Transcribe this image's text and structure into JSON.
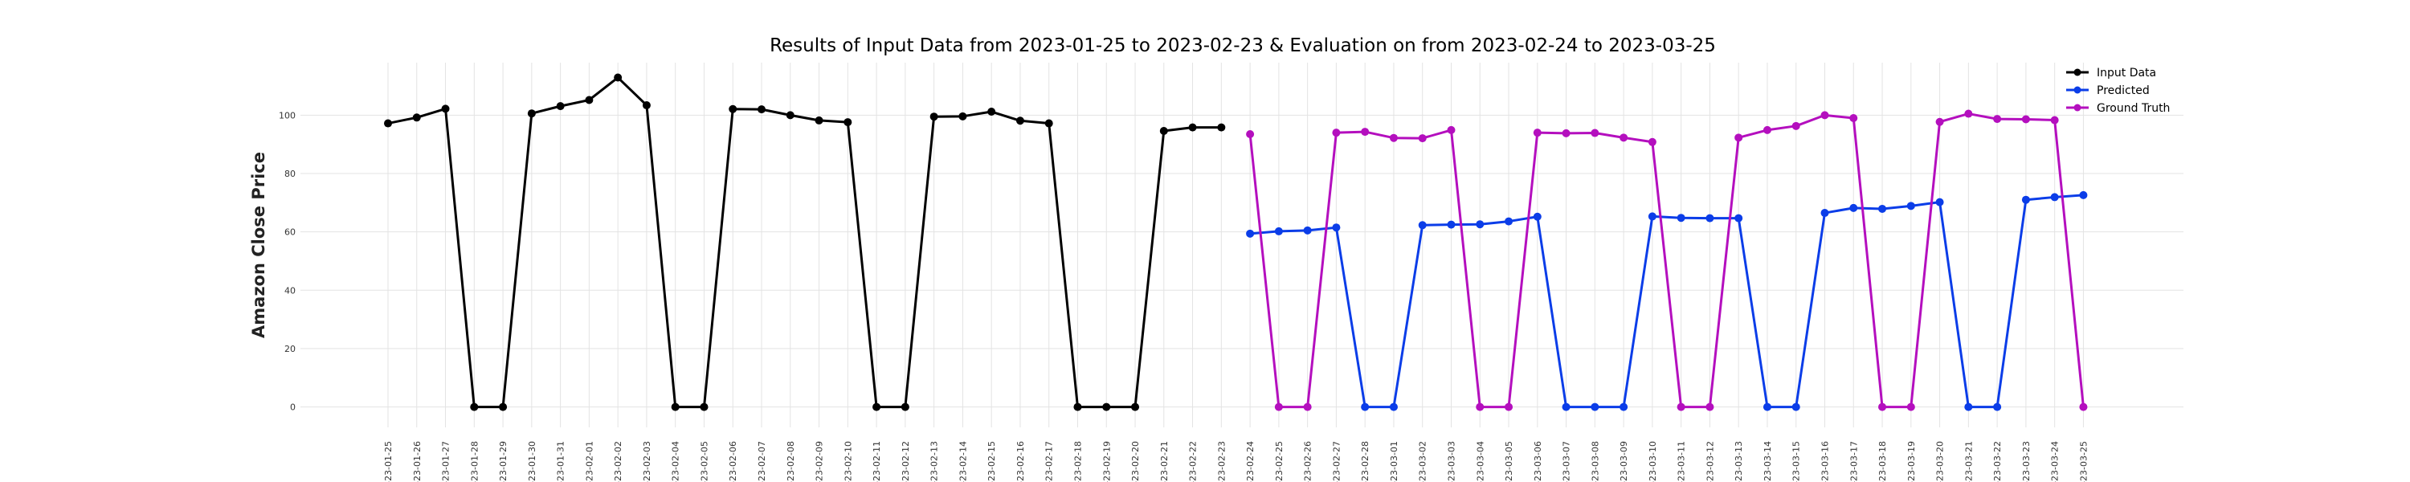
{
  "chart_data": {
    "type": "line",
    "title": "Results of Input Data from 2023-01-25 to 2023-02-23 & Evaluation on from 2023-02-24 to 2023-03-25",
    "xlabel": "",
    "ylabel": "Amazon Close Price",
    "ylim": [
      -7,
      118
    ],
    "yticks": [
      0,
      20,
      40,
      60,
      80,
      100
    ],
    "grid": true,
    "legend_position": "top-right",
    "categories": [
      "2023-01-25",
      "2023-01-26",
      "2023-01-27",
      "2023-01-28",
      "2023-01-29",
      "2023-01-30",
      "2023-01-31",
      "2023-02-01",
      "2023-02-02",
      "2023-02-03",
      "2023-02-04",
      "2023-02-05",
      "2023-02-06",
      "2023-02-07",
      "2023-02-08",
      "2023-02-09",
      "2023-02-10",
      "2023-02-11",
      "2023-02-12",
      "2023-02-13",
      "2023-02-14",
      "2023-02-15",
      "2023-02-16",
      "2023-02-17",
      "2023-02-18",
      "2023-02-19",
      "2023-02-20",
      "2023-02-21",
      "2023-02-22",
      "2023-02-23",
      "2023-02-24",
      "2023-02-25",
      "2023-02-26",
      "2023-02-27",
      "2023-02-28",
      "2023-03-01",
      "2023-03-02",
      "2023-03-03",
      "2023-03-04",
      "2023-03-05",
      "2023-03-06",
      "2023-03-07",
      "2023-03-08",
      "2023-03-09",
      "2023-03-10",
      "2023-03-11",
      "2023-03-12",
      "2023-03-13",
      "2023-03-14",
      "2023-03-15",
      "2023-03-16",
      "2023-03-17",
      "2023-03-18",
      "2023-03-19",
      "2023-03-20",
      "2023-03-21",
      "2023-03-22",
      "2023-03-23",
      "2023-03-24",
      "2023-03-25"
    ],
    "tick_labels": [
      "-23-01-25",
      "-23-01-26",
      "-23-01-27",
      "-23-01-28",
      "-23-01-29",
      "-23-01-30",
      "-23-01-31",
      "-23-02-01",
      "-23-02-02",
      "-23-02-03",
      "-23-02-04",
      "-23-02-05",
      "-23-02-06",
      "-23-02-07",
      "-23-02-08",
      "-23-02-09",
      "-23-02-10",
      "-23-02-11",
      "-23-02-12",
      "-23-02-13",
      "-23-02-14",
      "-23-02-15",
      "-23-02-16",
      "-23-02-17",
      "-23-02-18",
      "-23-02-19",
      "-23-02-20",
      "-23-02-21",
      "-23-02-22",
      "-23-02-23",
      "-23-02-24",
      "-23-02-25",
      "-23-02-26",
      "-23-02-27",
      "-23-02-28",
      "-23-03-01",
      "-23-03-02",
      "-23-03-03",
      "-23-03-04",
      "-23-03-05",
      "-23-03-06",
      "-23-03-07",
      "-23-03-08",
      "-23-03-09",
      "-23-03-10",
      "-23-03-11",
      "-23-03-12",
      "-23-03-13",
      "-23-03-14",
      "-23-03-15",
      "-23-03-16",
      "-23-03-17",
      "-23-03-18",
      "-23-03-19",
      "-23-03-20",
      "-23-03-21",
      "-23-03-22",
      "-23-03-23",
      "-23-03-24",
      "-23-03-25"
    ],
    "series": [
      {
        "name": "Input Data",
        "color": "#000000",
        "x": [
          "2023-01-25",
          "2023-01-26",
          "2023-01-27",
          "2023-01-28",
          "2023-01-29",
          "2023-01-30",
          "2023-01-31",
          "2023-02-01",
          "2023-02-02",
          "2023-02-03",
          "2023-02-04",
          "2023-02-05",
          "2023-02-06",
          "2023-02-07",
          "2023-02-08",
          "2023-02-09",
          "2023-02-10",
          "2023-02-11",
          "2023-02-12",
          "2023-02-13",
          "2023-02-14",
          "2023-02-15",
          "2023-02-16",
          "2023-02-17",
          "2023-02-18",
          "2023-02-19",
          "2023-02-20",
          "2023-02-21",
          "2023-02-22",
          "2023-02-23"
        ],
        "values": [
          97.2,
          99.2,
          102.2,
          0,
          0,
          100.6,
          103.1,
          105.2,
          112.9,
          103.4,
          0,
          0,
          102.1,
          102.0,
          100.0,
          98.2,
          97.6,
          0,
          0,
          99.5,
          99.6,
          101.2,
          98.1,
          97.2,
          0,
          0,
          0,
          94.6,
          95.8,
          95.8
        ]
      },
      {
        "name": "Predicted",
        "color": "#0b3de8",
        "x": [
          "2023-02-24",
          "2023-02-25",
          "2023-02-26",
          "2023-02-27",
          "2023-02-28",
          "2023-03-01",
          "2023-03-02",
          "2023-03-03",
          "2023-03-04",
          "2023-03-05",
          "2023-03-06",
          "2023-03-07",
          "2023-03-08",
          "2023-03-09",
          "2023-03-10",
          "2023-03-11",
          "2023-03-12",
          "2023-03-13",
          "2023-03-14",
          "2023-03-15",
          "2023-03-16",
          "2023-03-17",
          "2023-03-18",
          "2023-03-19",
          "2023-03-20",
          "2023-03-21",
          "2023-03-22",
          "2023-03-23",
          "2023-03-24",
          "2023-03-25"
        ],
        "values": [
          59.4,
          60.2,
          60.5,
          61.5,
          0,
          0,
          62.3,
          62.5,
          62.6,
          63.6,
          65.2,
          0,
          0,
          0,
          65.3,
          64.8,
          64.7,
          64.7,
          0,
          0,
          66.5,
          68.2,
          67.9,
          68.9,
          70.2,
          0,
          0,
          71.0,
          71.9,
          72.6
        ]
      },
      {
        "name": "Ground Truth",
        "color": "#b40fbe",
        "x": [
          "2023-02-24",
          "2023-02-25",
          "2023-02-26",
          "2023-02-27",
          "2023-02-28",
          "2023-03-01",
          "2023-03-02",
          "2023-03-03",
          "2023-03-04",
          "2023-03-05",
          "2023-03-06",
          "2023-03-07",
          "2023-03-08",
          "2023-03-09",
          "2023-03-10",
          "2023-03-11",
          "2023-03-12",
          "2023-03-13",
          "2023-03-14",
          "2023-03-15",
          "2023-03-16",
          "2023-03-17",
          "2023-03-18",
          "2023-03-19",
          "2023-03-20",
          "2023-03-21",
          "2023-03-22",
          "2023-03-23",
          "2023-03-24",
          "2023-03-25"
        ],
        "values": [
          93.5,
          0,
          0,
          94.0,
          94.3,
          92.2,
          92.1,
          94.9,
          0,
          0,
          94.0,
          93.8,
          93.9,
          92.3,
          90.8,
          0,
          0,
          92.3,
          94.9,
          96.3,
          100.0,
          99.0,
          0,
          0,
          97.7,
          100.5,
          98.7,
          98.6,
          98.3,
          0
        ]
      }
    ]
  }
}
